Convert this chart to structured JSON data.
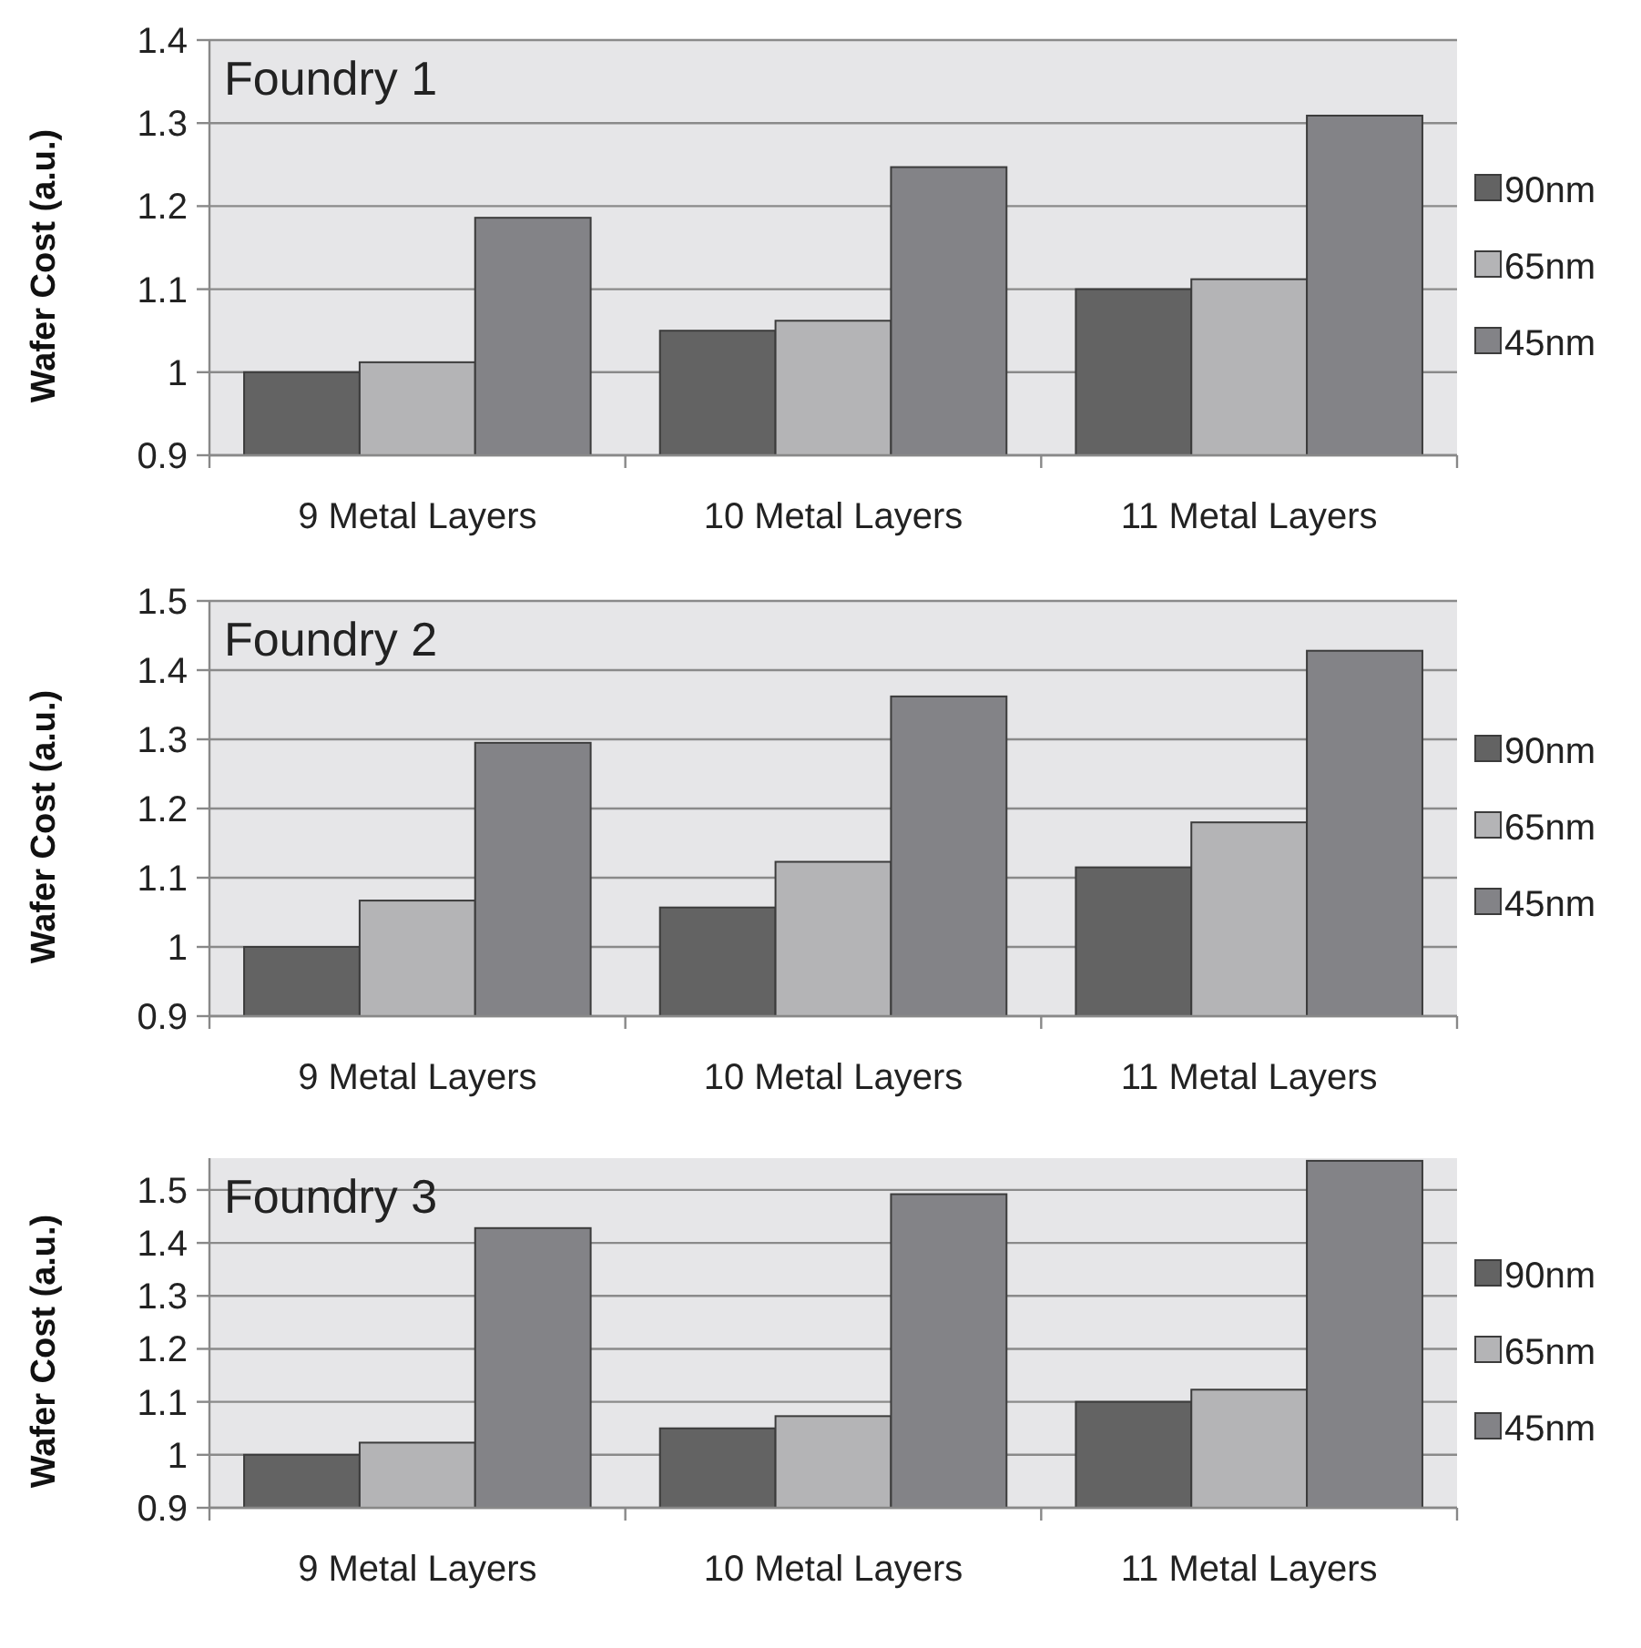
{
  "chart_data": [
    {
      "type": "bar",
      "title": "Foundry 1",
      "ylabel": "Wafer Cost (a.u.)",
      "categories": [
        "9 Metal Layers",
        "10 Metal Layers",
        "11 Metal Layers"
      ],
      "series": [
        {
          "name": "90nm",
          "color": "#636363",
          "values": [
            1.0,
            1.05,
            1.1
          ]
        },
        {
          "name": "65nm",
          "color": "#b4b4b6",
          "values": [
            1.012,
            1.062,
            1.112
          ]
        },
        {
          "name": "45nm",
          "color": "#838387",
          "values": [
            1.186,
            1.247,
            1.309
          ]
        }
      ],
      "ylim": [
        0.9,
        1.4
      ],
      "yticks": [
        {
          "value": 0.9,
          "label": "0.9"
        },
        {
          "value": 1,
          "label": "1"
        },
        {
          "value": 1.1,
          "label": "1.1"
        },
        {
          "value": 1.2,
          "label": "1.2"
        },
        {
          "value": 1.3,
          "label": "1.3"
        },
        {
          "value": 1.4,
          "label": "1.4"
        }
      ],
      "grid": "y",
      "legend": "right"
    },
    {
      "type": "bar",
      "title": "Foundry 2",
      "ylabel": "Wafer Cost (a.u.)",
      "categories": [
        "9 Metal Layers",
        "10 Metal Layers",
        "11 Metal Layers"
      ],
      "series": [
        {
          "name": "90nm",
          "color": "#636363",
          "values": [
            1.0,
            1.057,
            1.115
          ]
        },
        {
          "name": "65nm",
          "color": "#b4b4b6",
          "values": [
            1.067,
            1.123,
            1.18
          ]
        },
        {
          "name": "45nm",
          "color": "#838387",
          "values": [
            1.295,
            1.362,
            1.428
          ]
        }
      ],
      "ylim": [
        0.9,
        1.5
      ],
      "yticks": [
        {
          "value": 0.9,
          "label": "0.9"
        },
        {
          "value": 1,
          "label": "1"
        },
        {
          "value": 1.1,
          "label": "1.1"
        },
        {
          "value": 1.2,
          "label": "1.2"
        },
        {
          "value": 1.3,
          "label": "1.3"
        },
        {
          "value": 1.4,
          "label": "1.4"
        },
        {
          "value": 1.5,
          "label": "1.5"
        }
      ],
      "grid": "y",
      "legend": "right"
    },
    {
      "type": "bar",
      "title": "Foundry 3",
      "ylabel": "Wafer Cost (a.u.)",
      "categories": [
        "9 Metal Layers",
        "10 Metal Layers",
        "11 Metal Layers"
      ],
      "series": [
        {
          "name": "90nm",
          "color": "#636363",
          "values": [
            1.0,
            1.05,
            1.1
          ]
        },
        {
          "name": "65nm",
          "color": "#b4b4b6",
          "values": [
            1.023,
            1.073,
            1.123
          ]
        },
        {
          "name": "45nm",
          "color": "#838387",
          "values": [
            1.428,
            1.492,
            1.555
          ]
        }
      ],
      "ylim": [
        0.9,
        1.56
      ],
      "yticks": [
        {
          "value": 0.9,
          "label": "0.9"
        },
        {
          "value": 1,
          "label": "1"
        },
        {
          "value": 1.1,
          "label": "1.1"
        },
        {
          "value": 1.2,
          "label": "1.2"
        },
        {
          "value": 1.3,
          "label": "1.3"
        },
        {
          "value": 1.4,
          "label": "1.4"
        },
        {
          "value": 1.5,
          "label": "1.5"
        }
      ],
      "grid": "y",
      "legend": "right"
    }
  ]
}
